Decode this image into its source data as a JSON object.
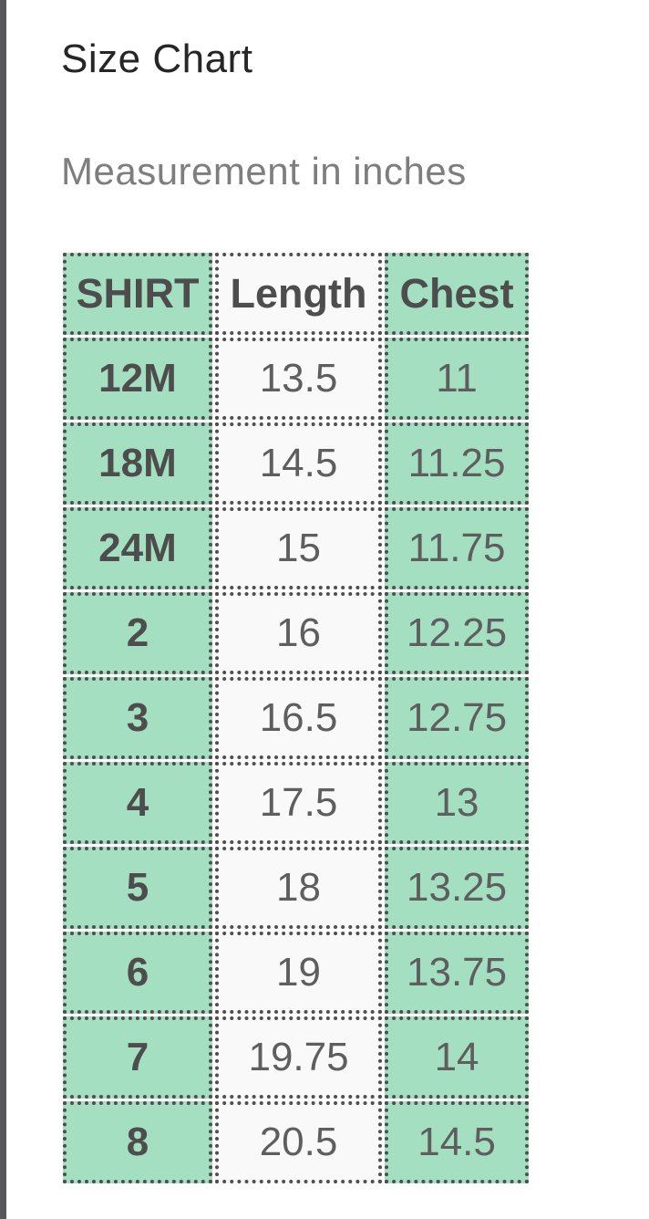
{
  "page": {
    "title": "Size Chart",
    "subtitle": "Measurement in inches"
  },
  "colors": {
    "cell_green": "#a5dfc2",
    "cell_light": "#f9f9f9",
    "border": "#4f4f4f",
    "edge_bar": "#58585a",
    "title_text": "#262626",
    "subtitle_text": "#7e7e7e",
    "header_text": "#4d4d4d",
    "value_text": "#5e5e5e"
  },
  "size_chart": {
    "columns": [
      "SHIRT",
      "Length",
      "Chest"
    ],
    "rows": [
      {
        "size": "12M",
        "length": "13.5",
        "chest": "11"
      },
      {
        "size": "18M",
        "length": "14.5",
        "chest": "11.25"
      },
      {
        "size": "24M",
        "length": "15",
        "chest": "11.75"
      },
      {
        "size": "2",
        "length": "16",
        "chest": "12.25"
      },
      {
        "size": "3",
        "length": "16.5",
        "chest": "12.75"
      },
      {
        "size": "4",
        "length": "17.5",
        "chest": "13"
      },
      {
        "size": "5",
        "length": "18",
        "chest": "13.25"
      },
      {
        "size": "6",
        "length": "19",
        "chest": "13.75"
      },
      {
        "size": "7",
        "length": "19.75",
        "chest": "14"
      },
      {
        "size": "8",
        "length": "20.5",
        "chest": "14.5"
      }
    ]
  }
}
